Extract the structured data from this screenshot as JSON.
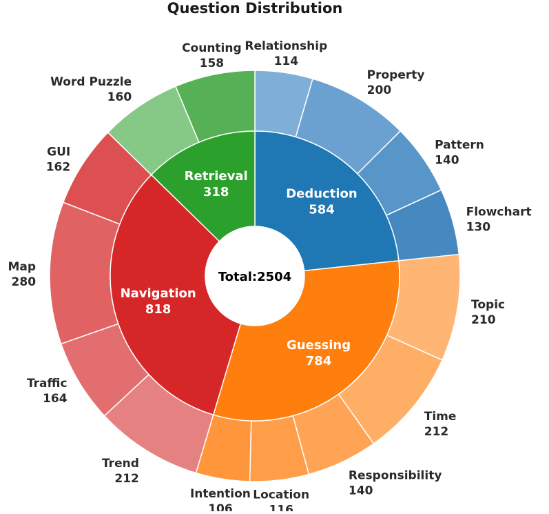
{
  "chart_data": {
    "type": "sunburst",
    "title": "Question Distribution",
    "center_label": "Total:2504",
    "total": 2504,
    "categories": [
      {
        "name": "Deduction",
        "value": 584,
        "color": "#1f77b4",
        "children": [
          {
            "name": "Relationship",
            "value": 114,
            "color": "#7fafd6"
          },
          {
            "name": "Property",
            "value": 200,
            "color": "#6aa1d0"
          },
          {
            "name": "Pattern",
            "value": 140,
            "color": "#5896c9"
          },
          {
            "name": "Flowchart",
            "value": 130,
            "color": "#4689c1"
          }
        ]
      },
      {
        "name": "Guessing",
        "value": 784,
        "color": "#ff7f0e",
        "children": [
          {
            "name": "Topic",
            "value": 210,
            "color": "#ffb574"
          },
          {
            "name": "Time",
            "value": 212,
            "color": "#ffae66"
          },
          {
            "name": "Responsibility",
            "value": 140,
            "color": "#ffa455"
          },
          {
            "name": "Location",
            "value": 116,
            "color": "#ff9d48"
          },
          {
            "name": "Intention",
            "value": 106,
            "color": "#ff963b"
          }
        ]
      },
      {
        "name": "Navigation",
        "value": 818,
        "color": "#d62728",
        "children": [
          {
            "name": "Trend",
            "value": 212,
            "color": "#e58181"
          },
          {
            "name": "Traffic",
            "value": 164,
            "color": "#e36e6f"
          },
          {
            "name": "Map",
            "value": 280,
            "color": "#e06263"
          },
          {
            "name": "GUI",
            "value": 162,
            "color": "#dd5051"
          }
        ]
      },
      {
        "name": "Retrieval",
        "value": 318,
        "color": "#2ca02c",
        "children": [
          {
            "name": "Word Puzzle",
            "value": 160,
            "color": "#86c986"
          },
          {
            "name": "Counting",
            "value": 158,
            "color": "#56b056"
          }
        ]
      }
    ]
  }
}
